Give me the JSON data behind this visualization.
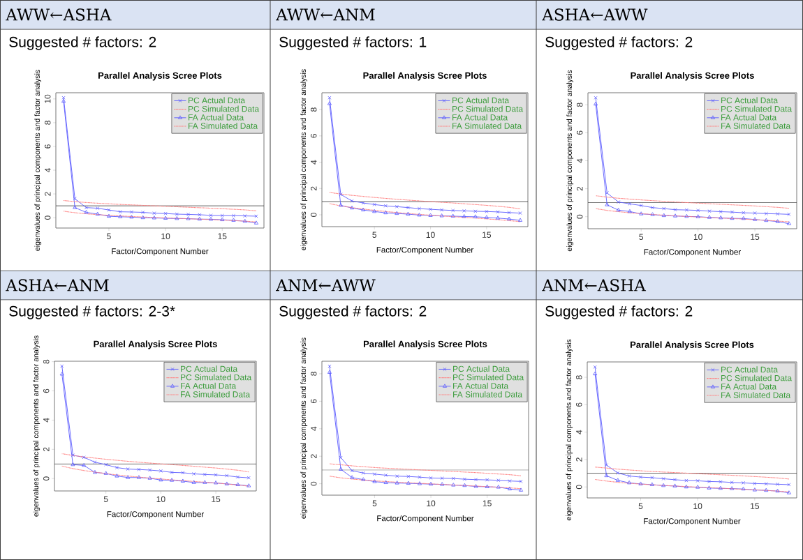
{
  "chart_data": [
    {
      "type": "line",
      "title": "Parallel Analysis Scree Plots",
      "xlabel": "Factor/Component Number",
      "ylabel": "eigenvalues of principal components and factor analysis",
      "annotations": [
        "AWW←ASHA",
        "Suggested # factors: 2"
      ],
      "legend": "top right",
      "xlim": [
        0.32,
        18.68
      ],
      "ylim": [
        -0.87,
        10.52
      ],
      "xticks": [
        5,
        10,
        15
      ],
      "yticks": [
        0,
        2,
        4,
        6,
        8,
        10
      ],
      "ref_lines": [
        {
          "axis": "y",
          "value": 1,
          "color": "#333333"
        }
      ],
      "x": [
        1,
        2,
        3,
        4,
        5,
        6,
        7,
        8,
        9,
        10,
        11,
        12,
        13,
        14,
        15,
        16,
        17,
        18
      ],
      "series": [
        {
          "name": "PC  Actual Data",
          "color": "#5b5bff",
          "marker": "cross",
          "line_style": "solid",
          "values": [
            10.1,
            1.6,
            0.85,
            0.8,
            0.65,
            0.5,
            0.48,
            0.45,
            0.38,
            0.35,
            0.3,
            0.28,
            0.25,
            0.2,
            0.18,
            0.17,
            0.15,
            0.13
          ]
        },
        {
          "name": "PC  Simulated Data",
          "color": "#ff8080",
          "marker": "none",
          "line_style": "dotted",
          "values": [
            1.45,
            1.35,
            1.28,
            1.22,
            1.17,
            1.12,
            1.08,
            1.04,
            1.0,
            0.96,
            0.92,
            0.88,
            0.84,
            0.8,
            0.76,
            0.71,
            0.66,
            0.58
          ]
        },
        {
          "name": "FA  Actual Data",
          "color": "#5b5bff",
          "marker": "triangle",
          "line_style": "solid",
          "values": [
            9.8,
            0.85,
            0.45,
            0.3,
            0.12,
            0.08,
            0.05,
            0.0,
            -0.02,
            -0.05,
            -0.07,
            -0.08,
            -0.12,
            -0.13,
            -0.17,
            -0.22,
            -0.3,
            -0.45
          ]
        },
        {
          "name": "FA  Simulated Data",
          "color": "#ff8080",
          "marker": "none",
          "line_style": "dotted",
          "values": [
            0.55,
            0.42,
            0.33,
            0.26,
            0.2,
            0.15,
            0.1,
            0.06,
            0.02,
            -0.02,
            -0.05,
            -0.09,
            -0.12,
            -0.16,
            -0.2,
            -0.24,
            -0.29,
            -0.36
          ]
        }
      ]
    },
    {
      "type": "line",
      "title": "Parallel Analysis Scree Plots",
      "xlabel": "Factor/Component Number",
      "ylabel": "eigenvalues of principal components and factor analysis",
      "annotations": [
        "AWW←ANM",
        "Suggested # factors: 1"
      ],
      "legend": "top right",
      "xlim": [
        0.32,
        18.68
      ],
      "ylim": [
        -0.9,
        9.28
      ],
      "xticks": [
        5,
        10,
        15
      ],
      "yticks": [
        0,
        2,
        4,
        6,
        8
      ],
      "ref_lines": [
        {
          "axis": "y",
          "value": 1,
          "color": "#333333"
        }
      ],
      "x": [
        1,
        2,
        3,
        4,
        5,
        6,
        7,
        8,
        9,
        10,
        11,
        12,
        13,
        14,
        15,
        16,
        17,
        18
      ],
      "series": [
        {
          "name": "PC  Actual Data",
          "color": "#5b5bff",
          "marker": "cross",
          "line_style": "solid",
          "values": [
            8.9,
            1.55,
            1.05,
            0.9,
            0.78,
            0.68,
            0.62,
            0.55,
            0.47,
            0.42,
            0.37,
            0.33,
            0.3,
            0.27,
            0.25,
            0.22,
            0.17,
            0.13
          ]
        },
        {
          "name": "PC  Simulated Data",
          "color": "#ff8080",
          "marker": "none",
          "line_style": "dotted",
          "values": [
            1.7,
            1.58,
            1.48,
            1.4,
            1.32,
            1.25,
            1.18,
            1.12,
            1.06,
            1.0,
            0.95,
            0.9,
            0.84,
            0.78,
            0.72,
            0.65,
            0.57,
            0.45
          ]
        },
        {
          "name": "FA  Actual Data",
          "color": "#5b5bff",
          "marker": "triangle",
          "line_style": "solid",
          "values": [
            8.45,
            0.72,
            0.52,
            0.37,
            0.25,
            0.15,
            0.1,
            0.05,
            -0.02,
            -0.05,
            -0.08,
            -0.1,
            -0.13,
            -0.15,
            -0.2,
            -0.25,
            -0.32,
            -0.42
          ]
        },
        {
          "name": "FA  Simulated Data",
          "color": "#ff8080",
          "marker": "none",
          "line_style": "dotted",
          "values": [
            0.85,
            0.68,
            0.55,
            0.44,
            0.34,
            0.25,
            0.17,
            0.1,
            0.03,
            -0.03,
            -0.09,
            -0.14,
            -0.2,
            -0.25,
            -0.31,
            -0.37,
            -0.44,
            -0.52
          ]
        }
      ]
    },
    {
      "type": "line",
      "title": "Parallel Analysis Scree Plots",
      "xlabel": "Factor/Component Number",
      "ylabel": "eigenvalues of principal components and factor analysis",
      "annotations": [
        "ASHA←AWW",
        "Suggested # factors: 2"
      ],
      "legend": "top right",
      "xlim": [
        0.32,
        18.68
      ],
      "ylim": [
        -0.86,
        8.86
      ],
      "xticks": [
        5,
        10,
        15
      ],
      "yticks": [
        0,
        2,
        4,
        6,
        8
      ],
      "ref_lines": [
        {
          "axis": "y",
          "value": 1,
          "color": "#333333"
        }
      ],
      "x": [
        1,
        2,
        3,
        4,
        5,
        6,
        7,
        8,
        9,
        10,
        11,
        12,
        13,
        14,
        15,
        16,
        17,
        18
      ],
      "series": [
        {
          "name": "PC  Actual Data",
          "color": "#5b5bff",
          "marker": "cross",
          "line_style": "solid",
          "values": [
            8.5,
            1.7,
            1.05,
            0.92,
            0.8,
            0.65,
            0.58,
            0.5,
            0.48,
            0.45,
            0.4,
            0.36,
            0.33,
            0.28,
            0.26,
            0.22,
            0.2,
            0.17
          ]
        },
        {
          "name": "PC  Simulated Data",
          "color": "#ff8080",
          "marker": "none",
          "line_style": "dotted",
          "values": [
            1.5,
            1.4,
            1.32,
            1.26,
            1.2,
            1.15,
            1.1,
            1.05,
            1.01,
            0.97,
            0.93,
            0.89,
            0.85,
            0.81,
            0.77,
            0.72,
            0.67,
            0.6
          ]
        },
        {
          "name": "FA  Actual Data",
          "color": "#5b5bff",
          "marker": "triangle",
          "line_style": "solid",
          "values": [
            8.05,
            0.85,
            0.47,
            0.37,
            0.2,
            0.15,
            0.08,
            0.05,
            0.02,
            0.0,
            -0.05,
            -0.08,
            -0.12,
            -0.13,
            -0.2,
            -0.27,
            -0.35,
            -0.5
          ]
        },
        {
          "name": "FA  Simulated Data",
          "color": "#ff8080",
          "marker": "none",
          "line_style": "dotted",
          "values": [
            0.58,
            0.45,
            0.36,
            0.28,
            0.22,
            0.16,
            0.11,
            0.06,
            0.02,
            -0.02,
            -0.06,
            -0.1,
            -0.13,
            -0.17,
            -0.21,
            -0.26,
            -0.31,
            -0.37
          ]
        }
      ]
    },
    {
      "type": "line",
      "title": "Parallel Analysis Scree Plots",
      "xlabel": "Factor/Component Number",
      "ylabel": "eigenvalues of principal components and factor analysis",
      "annotations": [
        "ASHA←ANM",
        "Suggested # factors: 2-3*"
      ],
      "legend": "top right",
      "xlim": [
        0.32,
        18.68
      ],
      "ylim": [
        -0.85,
        8.03
      ],
      "xticks": [
        5,
        10,
        15
      ],
      "yticks": [
        0,
        2,
        4,
        6,
        8
      ],
      "ref_lines": [
        {
          "axis": "y",
          "value": 1,
          "color": "#333333"
        }
      ],
      "x": [
        1,
        2,
        3,
        4,
        5,
        6,
        7,
        8,
        9,
        10,
        11,
        12,
        13,
        14,
        15,
        16,
        17,
        18
      ],
      "series": [
        {
          "name": "PC  Actual Data",
          "color": "#5b5bff",
          "marker": "cross",
          "line_style": "solid",
          "values": [
            7.7,
            1.6,
            1.45,
            1.12,
            0.95,
            0.75,
            0.65,
            0.62,
            0.58,
            0.52,
            0.42,
            0.4,
            0.32,
            0.28,
            0.25,
            0.2,
            0.1,
            0.05
          ]
        },
        {
          "name": "PC  Simulated Data",
          "color": "#ff8080",
          "marker": "none",
          "line_style": "dotted",
          "values": [
            1.7,
            1.58,
            1.48,
            1.4,
            1.32,
            1.25,
            1.18,
            1.12,
            1.06,
            1.0,
            0.95,
            0.9,
            0.84,
            0.78,
            0.72,
            0.65,
            0.57,
            0.45
          ]
        },
        {
          "name": "FA  Actual Data",
          "color": "#5b5bff",
          "marker": "triangle",
          "line_style": "solid",
          "values": [
            7.15,
            0.95,
            0.9,
            0.42,
            0.35,
            0.17,
            0.07,
            0.07,
            0.02,
            -0.1,
            -0.12,
            -0.18,
            -0.27,
            -0.27,
            -0.3,
            -0.37,
            -0.42,
            -0.5
          ]
        },
        {
          "name": "FA  Simulated Data",
          "color": "#ff8080",
          "marker": "none",
          "line_style": "dotted",
          "values": [
            0.85,
            0.68,
            0.55,
            0.44,
            0.34,
            0.25,
            0.17,
            0.1,
            0.03,
            -0.03,
            -0.09,
            -0.14,
            -0.2,
            -0.25,
            -0.31,
            -0.37,
            -0.44,
            -0.52
          ]
        }
      ]
    },
    {
      "type": "line",
      "title": "Parallel Analysis Scree Plots",
      "xlabel": "Factor/Component Number",
      "ylabel": "eigenvalues of principal components and factor analysis",
      "annotations": [
        "ANM←AWW",
        "Suggested # factors: 2"
      ],
      "legend": "top right",
      "xlim": [
        0.32,
        18.68
      ],
      "ylim": [
        -0.83,
        8.91
      ],
      "xticks": [
        5,
        10,
        15
      ],
      "yticks": [
        0,
        2,
        4,
        6,
        8
      ],
      "ref_lines": [
        {
          "axis": "y",
          "value": 1,
          "color": "#333333"
        }
      ],
      "x": [
        1,
        2,
        3,
        4,
        5,
        6,
        7,
        8,
        9,
        10,
        11,
        12,
        13,
        14,
        15,
        16,
        17,
        18
      ],
      "series": [
        {
          "name": "PC  Actual Data",
          "color": "#5b5bff",
          "marker": "cross",
          "line_style": "solid",
          "values": [
            8.55,
            1.9,
            0.95,
            0.78,
            0.7,
            0.62,
            0.55,
            0.53,
            0.48,
            0.42,
            0.4,
            0.38,
            0.33,
            0.3,
            0.28,
            0.25,
            0.2,
            0.17
          ]
        },
        {
          "name": "PC  Simulated Data",
          "color": "#ff8080",
          "marker": "none",
          "line_style": "dotted",
          "values": [
            1.45,
            1.38,
            1.3,
            1.24,
            1.18,
            1.13,
            1.09,
            1.05,
            1.01,
            0.97,
            0.93,
            0.89,
            0.85,
            0.81,
            0.76,
            0.71,
            0.66,
            0.58
          ]
        },
        {
          "name": "FA  Actual Data",
          "color": "#5b5bff",
          "marker": "triangle",
          "line_style": "solid",
          "values": [
            8.1,
            1.05,
            0.45,
            0.3,
            0.15,
            0.08,
            0.05,
            0.03,
            0.0,
            -0.03,
            -0.05,
            -0.1,
            -0.13,
            -0.2,
            -0.22,
            -0.25,
            -0.38,
            -0.47
          ]
        },
        {
          "name": "FA  Simulated Data",
          "color": "#ff8080",
          "marker": "none",
          "line_style": "dotted",
          "values": [
            0.55,
            0.43,
            0.34,
            0.27,
            0.21,
            0.16,
            0.11,
            0.07,
            0.03,
            -0.01,
            -0.05,
            -0.09,
            -0.13,
            -0.17,
            -0.21,
            -0.25,
            -0.3,
            -0.36
          ]
        }
      ]
    },
    {
      "type": "line",
      "title": "Parallel Analysis Scree Plots",
      "xlabel": "Factor/Component Number",
      "ylabel": "eigenvalues of principal components and factor analysis",
      "annotations": [
        "ANM←ASHA",
        "Suggested # factors: 2"
      ],
      "legend": "top right",
      "xlim": [
        0.32,
        18.68
      ],
      "ylim": [
        -0.8,
        9.12
      ],
      "xticks": [
        5,
        10,
        15
      ],
      "yticks": [
        0,
        2,
        4,
        6,
        8
      ],
      "ref_lines": [
        {
          "axis": "y",
          "value": 1,
          "color": "#333333"
        }
      ],
      "x": [
        1,
        2,
        3,
        4,
        5,
        6,
        7,
        8,
        9,
        10,
        11,
        12,
        13,
        14,
        15,
        16,
        17,
        18
      ],
      "series": [
        {
          "name": "PC  Actual Data",
          "color": "#5b5bff",
          "marker": "cross",
          "line_style": "solid",
          "values": [
            8.75,
            1.6,
            1.02,
            0.8,
            0.72,
            0.68,
            0.6,
            0.53,
            0.47,
            0.45,
            0.4,
            0.38,
            0.33,
            0.3,
            0.25,
            0.23,
            0.2,
            0.17
          ]
        },
        {
          "name": "PC  Simulated Data",
          "color": "#ff8080",
          "marker": "none",
          "line_style": "dotted",
          "values": [
            1.45,
            1.38,
            1.3,
            1.24,
            1.18,
            1.13,
            1.09,
            1.05,
            1.01,
            0.97,
            0.93,
            0.89,
            0.85,
            0.81,
            0.76,
            0.71,
            0.66,
            0.58
          ]
        },
        {
          "name": "FA  Actual Data",
          "color": "#5b5bff",
          "marker": "triangle",
          "line_style": "solid",
          "values": [
            8.25,
            0.82,
            0.48,
            0.3,
            0.22,
            0.17,
            0.1,
            0.07,
            0.0,
            -0.02,
            -0.08,
            -0.1,
            -0.12,
            -0.15,
            -0.22,
            -0.25,
            -0.3,
            -0.43
          ]
        },
        {
          "name": "FA  Simulated Data",
          "color": "#ff8080",
          "marker": "none",
          "line_style": "dotted",
          "values": [
            0.55,
            0.43,
            0.34,
            0.27,
            0.21,
            0.16,
            0.11,
            0.07,
            0.03,
            -0.01,
            -0.05,
            -0.09,
            -0.13,
            -0.17,
            -0.21,
            -0.25,
            -0.3,
            -0.36
          ]
        }
      ]
    }
  ]
}
